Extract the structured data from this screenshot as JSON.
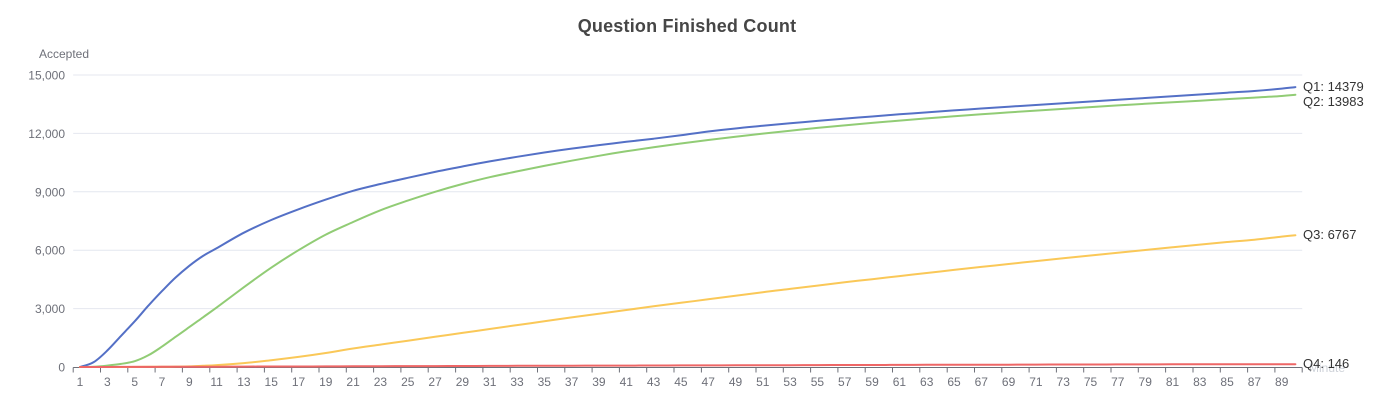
{
  "title": "Question Finished Count",
  "y_axis": {
    "name": "Accepted",
    "tick_values": [
      0,
      3000,
      6000,
      9000,
      12000,
      15000
    ],
    "tick_labels": [
      "0",
      "3,000",
      "6,000",
      "9,000",
      "12,000",
      "15,000"
    ],
    "min": 0,
    "max": 15000
  },
  "x_axis": {
    "name": "Minute",
    "category_count": 90,
    "label_start": 1,
    "label_end": 89,
    "label_step": 2
  },
  "colors": {
    "grid_line": "#E4E7EF",
    "axis_line": "#6E7079",
    "axis_label": "#6E7079",
    "title_text": "#464646",
    "end_label_text": "#333333"
  },
  "chart_data": {
    "type": "line",
    "title": "Question Finished Count",
    "xlabel": "Minute",
    "ylabel": "Accepted",
    "ylim": [
      0,
      15000
    ],
    "x_range": [
      1,
      90
    ],
    "grid": true,
    "legend": "end-labels-right",
    "x": [
      1,
      2,
      3,
      4,
      5,
      6,
      7,
      8,
      9,
      10,
      11,
      13,
      15,
      17,
      19,
      21,
      23,
      25,
      27,
      29,
      31,
      33,
      35,
      37,
      39,
      41,
      43,
      45,
      47,
      49,
      51,
      53,
      55,
      57,
      59,
      61,
      63,
      65,
      67,
      69,
      71,
      73,
      75,
      77,
      79,
      81,
      83,
      85,
      87,
      89,
      90
    ],
    "series": [
      {
        "name": "Q1",
        "final_value": 14379,
        "end_label": "Q1: 14379",
        "color": "#5470c6",
        "values": [
          0,
          250,
          850,
          1600,
          2350,
          3150,
          3900,
          4600,
          5200,
          5700,
          6100,
          6900,
          7550,
          8100,
          8600,
          9050,
          9400,
          9720,
          10020,
          10300,
          10560,
          10800,
          11020,
          11220,
          11400,
          11570,
          11730,
          11900,
          12100,
          12250,
          12390,
          12520,
          12640,
          12760,
          12870,
          12980,
          13080,
          13180,
          13280,
          13370,
          13460,
          13550,
          13640,
          13730,
          13820,
          13910,
          14000,
          14090,
          14180,
          14300,
          14379
        ]
      },
      {
        "name": "Q2",
        "final_value": 13983,
        "end_label": "Q2: 13983",
        "color": "#91cc75",
        "values": [
          0,
          10,
          70,
          160,
          300,
          600,
          1050,
          1550,
          2050,
          2550,
          3050,
          4100,
          5100,
          6000,
          6800,
          7450,
          8050,
          8550,
          9000,
          9400,
          9750,
          10050,
          10330,
          10600,
          10850,
          11080,
          11290,
          11480,
          11660,
          11830,
          11990,
          12140,
          12280,
          12410,
          12540,
          12660,
          12770,
          12880,
          12980,
          13080,
          13170,
          13260,
          13350,
          13440,
          13520,
          13600,
          13680,
          13760,
          13840,
          13920,
          13983
        ]
      },
      {
        "name": "Q3",
        "final_value": 6767,
        "end_label": "Q3: 6767",
        "color": "#fac858",
        "values": [
          0,
          0,
          0,
          0,
          5,
          10,
          15,
          20,
          30,
          60,
          100,
          200,
          350,
          520,
          720,
          950,
          1150,
          1350,
          1550,
          1750,
          1950,
          2150,
          2350,
          2550,
          2740,
          2930,
          3120,
          3300,
          3480,
          3660,
          3840,
          4010,
          4180,
          4350,
          4510,
          4670,
          4830,
          4990,
          5140,
          5290,
          5440,
          5590,
          5730,
          5870,
          6010,
          6150,
          6290,
          6420,
          6540,
          6700,
          6767
        ]
      },
      {
        "name": "Q4",
        "final_value": 146,
        "end_label": "Q4: 146",
        "color": "#ee6666",
        "values": [
          0,
          0,
          2,
          3,
          5,
          6,
          8,
          10,
          12,
          14,
          16,
          20,
          24,
          28,
          32,
          36,
          40,
          44,
          48,
          52,
          56,
          60,
          63,
          66,
          70,
          74,
          78,
          81,
          84,
          88,
          92,
          95,
          98,
          101,
          104,
          108,
          111,
          114,
          117,
          120,
          123,
          126,
          129,
          132,
          135,
          138,
          140,
          142,
          144,
          145,
          146
        ]
      }
    ]
  }
}
